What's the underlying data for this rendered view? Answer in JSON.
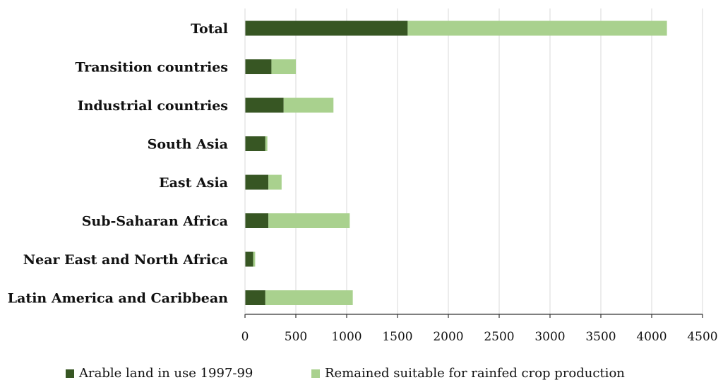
{
  "chart_data": {
    "type": "bar",
    "orientation": "horizontal",
    "stacked": true,
    "categories": [
      "Total",
      "Transition countries",
      "Industrial countries",
      "South Asia",
      "East Asia",
      "Sub-Saharan Africa",
      "Near East and North Africa",
      "Latin America and Caribbean"
    ],
    "series": [
      {
        "name": "Arable land in use 1997-99",
        "color": "#375623",
        "values": [
          1600,
          260,
          380,
          200,
          230,
          230,
          80,
          200
        ]
      },
      {
        "name": "Remained suitable for rainfed crop production",
        "color": "#a9d18e",
        "values": [
          2550,
          240,
          490,
          20,
          130,
          800,
          20,
          860
        ]
      }
    ],
    "xlim": [
      0,
      4500
    ],
    "xticks": [
      "0",
      "500",
      "1000",
      "1500",
      "2000",
      "2500",
      "3000",
      "3500",
      "4000",
      "4500"
    ],
    "title": "",
    "xlabel": "",
    "ylabel": "",
    "grid": "vertical",
    "legend": "bottom"
  }
}
